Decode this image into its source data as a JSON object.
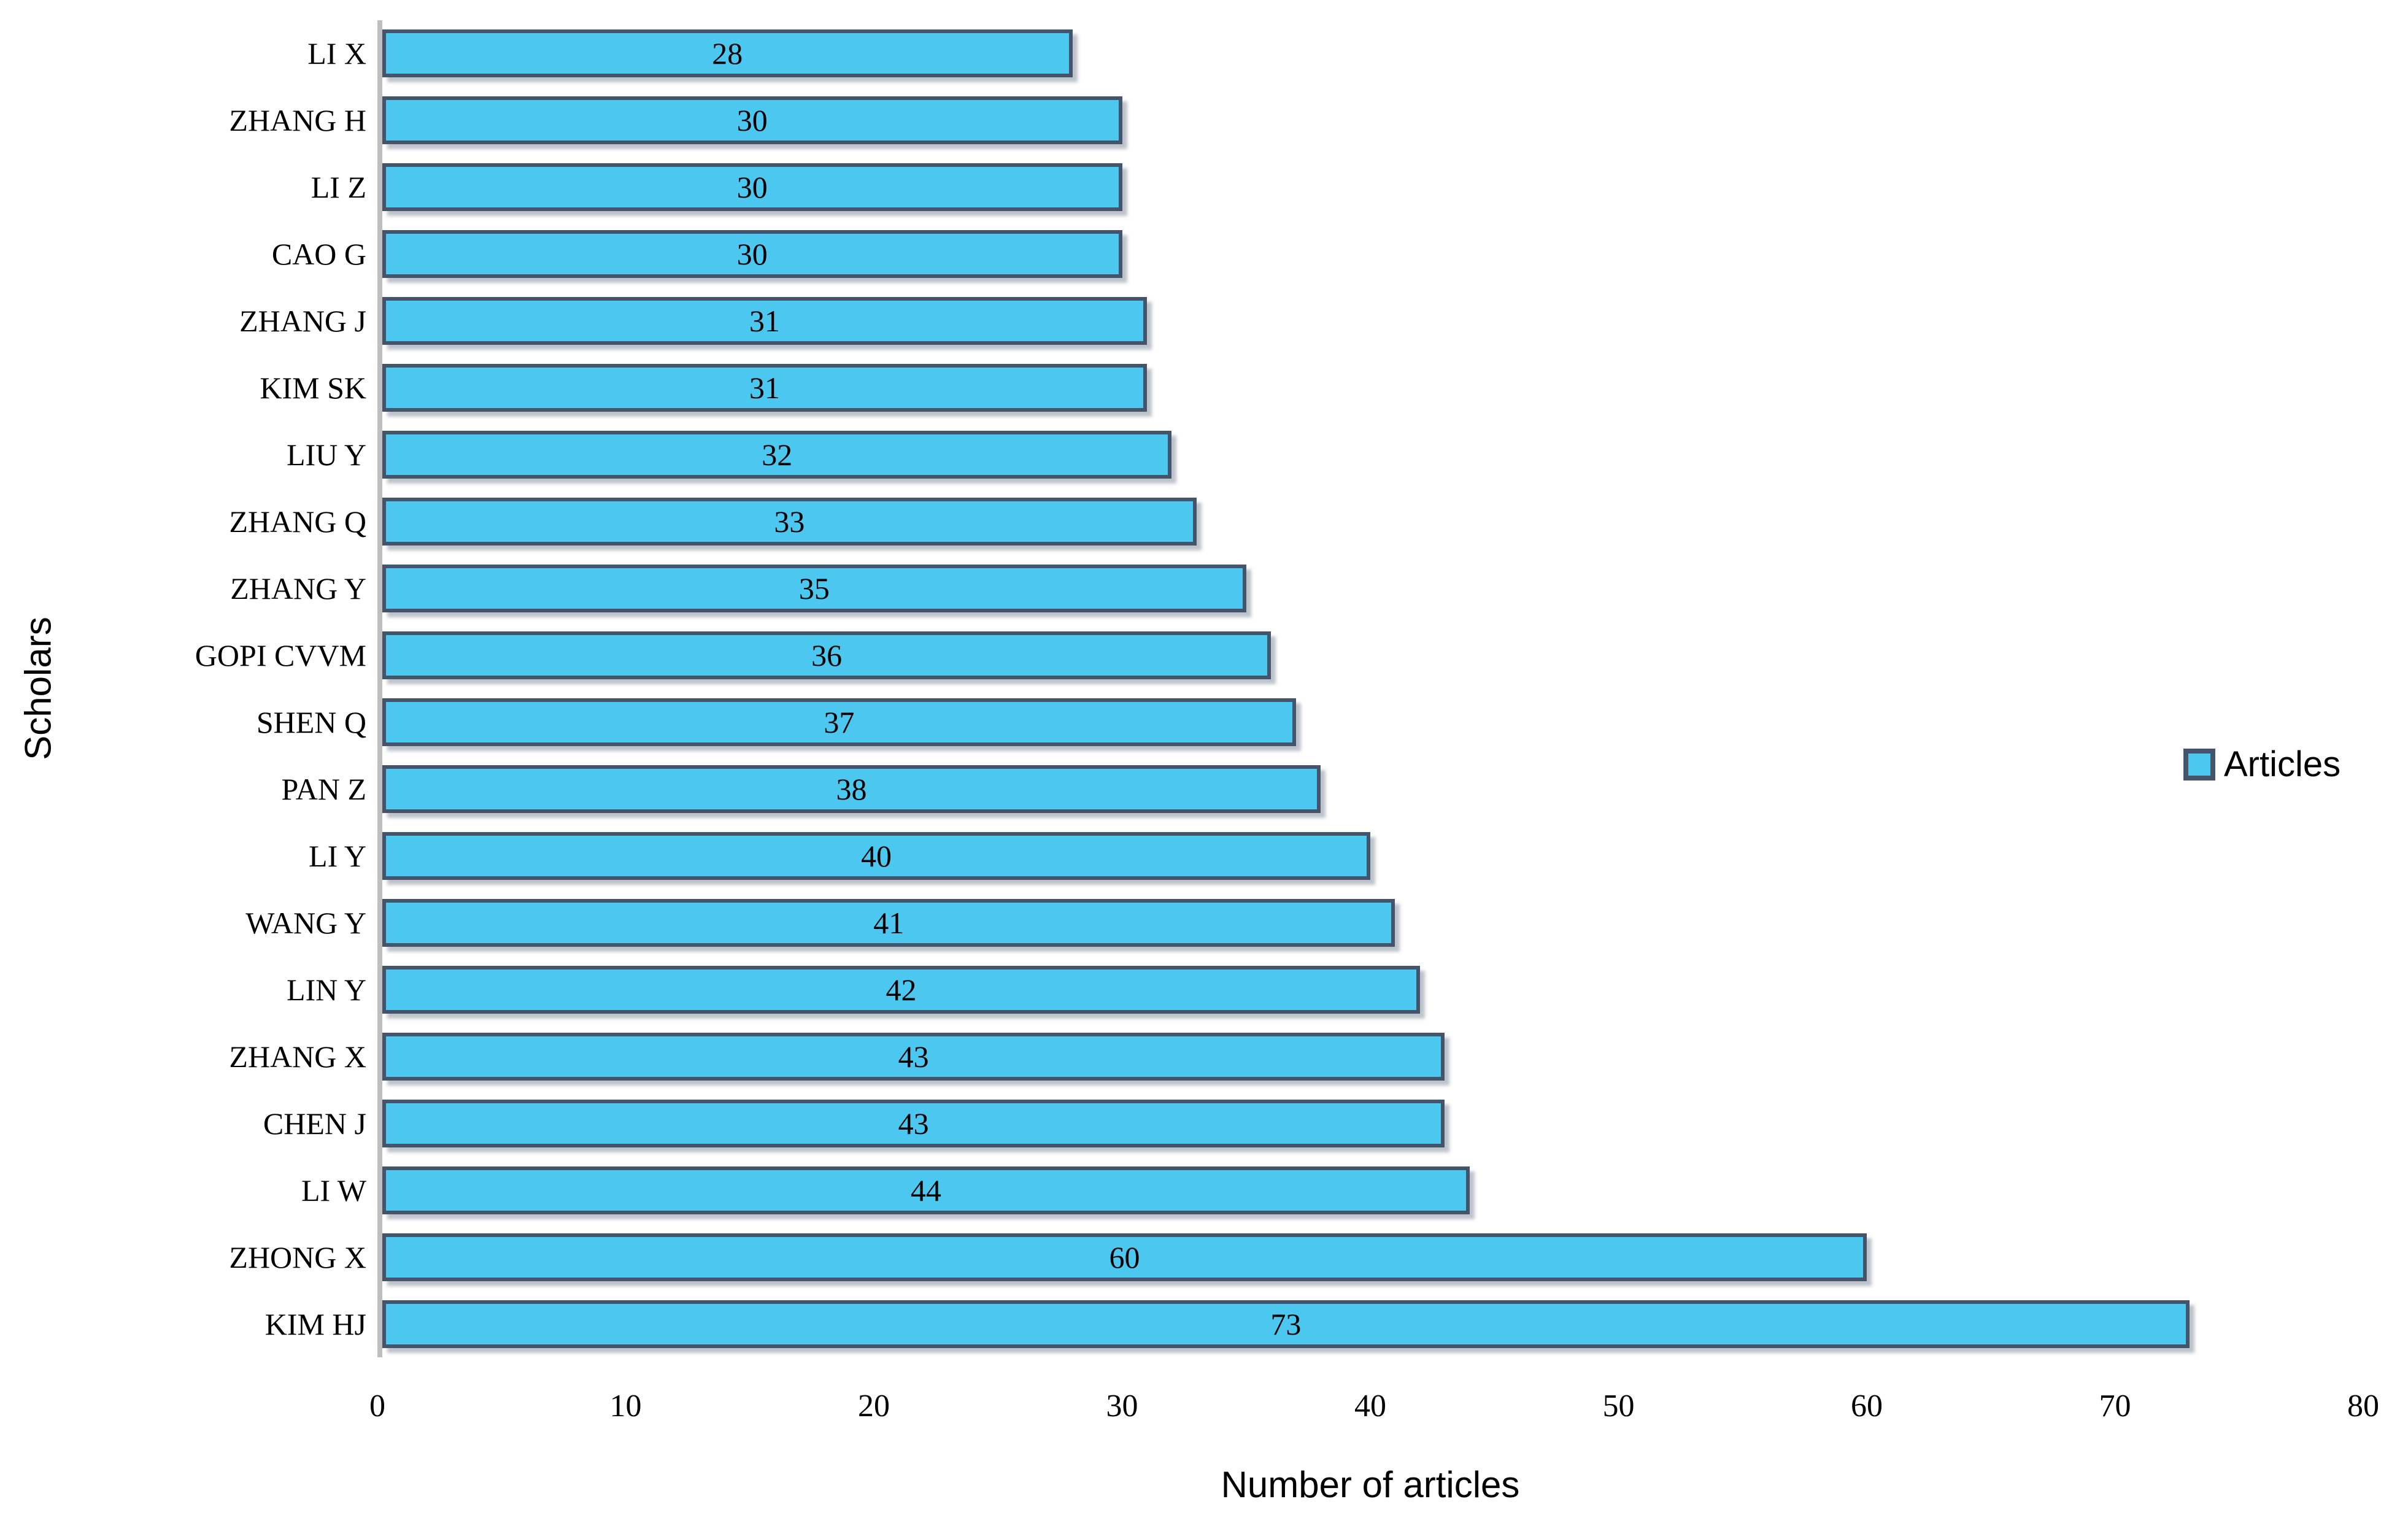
{
  "chart_data": {
    "type": "bar",
    "orientation": "horizontal",
    "title": "",
    "categories": [
      "LI X",
      "ZHANG H",
      "LI Z",
      "CAO G",
      "ZHANG J",
      "KIM SK",
      "LIU Y",
      "ZHANG Q",
      "ZHANG Y",
      "GOPI CVVM",
      "SHEN Q",
      "PAN Z",
      "LI Y",
      "WANG Y",
      "LIN Y",
      "ZHANG X",
      "CHEN J",
      "LI W",
      "ZHONG X",
      "KIM HJ"
    ],
    "values": [
      28,
      30,
      30,
      30,
      31,
      31,
      32,
      33,
      35,
      36,
      37,
      38,
      40,
      41,
      42,
      43,
      43,
      44,
      60,
      73
    ],
    "data_labels": [
      "28",
      "30",
      "30",
      "30",
      "31",
      "31",
      "32",
      "33",
      "35",
      "36",
      "37",
      "38",
      "40",
      "41",
      "42",
      "43",
      "43",
      "44",
      "60",
      "73"
    ],
    "xlabel": "Number of articles",
    "ylabel": "Scholars",
    "xlim": [
      0,
      80
    ],
    "xticks": [
      0,
      10,
      20,
      30,
      40,
      50,
      60,
      70,
      80
    ],
    "grid": false,
    "legend": {
      "label": "Articles",
      "position": "right"
    },
    "colors": {
      "bar_fill": "#4BC7F0",
      "bar_border": "#44546A",
      "axis_line": "#BFBFBF",
      "text": "#000000"
    }
  }
}
